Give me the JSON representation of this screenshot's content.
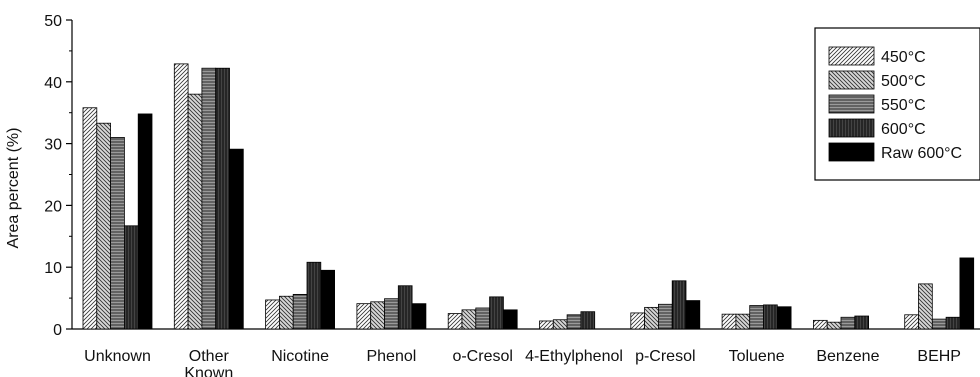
{
  "chart_data": {
    "type": "bar",
    "title": "",
    "xlabel": "",
    "ylabel": "Area percent (%)",
    "ylim": [
      0,
      50
    ],
    "yticks": [
      0,
      10,
      20,
      30,
      40,
      50
    ],
    "grid": false,
    "legend_position": "top-right",
    "categories": [
      [
        "Unknown"
      ],
      [
        "Other",
        "Known"
      ],
      [
        "Nicotine"
      ],
      [
        "Phenol"
      ],
      [
        "o-Cresol"
      ],
      [
        "4-Ethylphenol"
      ],
      [
        "p-Cresol"
      ],
      [
        "Toluene"
      ],
      [
        "Benzene"
      ],
      [
        "BEHP"
      ]
    ],
    "series": [
      {
        "name": "450°C",
        "pattern": "diag-ne",
        "values": [
          35.8,
          42.9,
          4.7,
          4.1,
          2.5,
          1.3,
          2.6,
          2.4,
          1.4,
          2.3
        ]
      },
      {
        "name": "500°C",
        "pattern": "diag-nw",
        "values": [
          33.3,
          38.0,
          5.3,
          4.4,
          3.1,
          1.5,
          3.5,
          2.4,
          1.1,
          7.3
        ]
      },
      {
        "name": "550°C",
        "pattern": "horizontal",
        "values": [
          31.0,
          42.2,
          5.6,
          4.9,
          3.4,
          2.3,
          4.0,
          3.8,
          1.9,
          1.6
        ]
      },
      {
        "name": "600°C",
        "pattern": "vertical",
        "values": [
          16.7,
          42.2,
          10.8,
          7.0,
          5.2,
          2.8,
          7.8,
          3.9,
          2.1,
          1.9
        ]
      },
      {
        "name": "Raw 600°C",
        "pattern": "solid",
        "values": [
          34.8,
          29.1,
          9.5,
          4.1,
          3.1,
          null,
          4.6,
          3.6,
          null,
          11.5
        ]
      }
    ]
  }
}
